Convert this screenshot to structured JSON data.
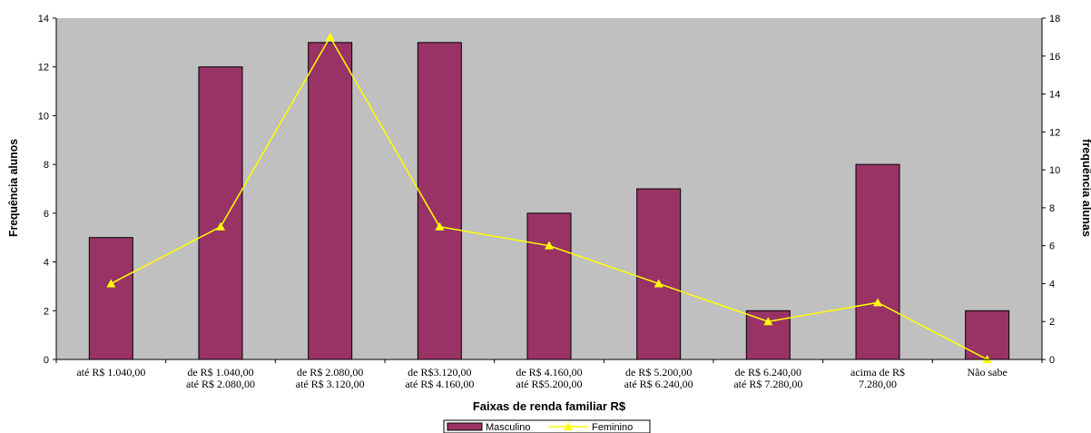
{
  "chart_data": {
    "type": "bar",
    "categories": [
      [
        "até R$ 1.040,00"
      ],
      [
        "de R$ 1.040,00",
        "até  R$ 2.080,00"
      ],
      [
        "de R$ 2.080,00",
        "até R$ 3.120,00"
      ],
      [
        "de R$3.120,00",
        "até R$ 4.160,00"
      ],
      [
        "de R$ 4.160,00",
        "até R$5.200,00"
      ],
      [
        "de R$ 5.200,00",
        "até R$ 6.240,00"
      ],
      [
        "de R$ 6.240,00",
        "até R$ 7.280,00"
      ],
      [
        "acima de R$",
        "7.280,00"
      ],
      [
        "Não sabe"
      ]
    ],
    "series": [
      {
        "name": "Masculino",
        "type": "bar",
        "axis": "left",
        "color": "#993366",
        "values": [
          5,
          12,
          13,
          13,
          6,
          7,
          2,
          8,
          2
        ]
      },
      {
        "name": "Feminino",
        "type": "line",
        "axis": "right",
        "color": "#FFFF00",
        "marker": "triangle",
        "values": [
          4,
          7,
          17,
          7,
          6,
          4,
          2,
          3,
          0
        ]
      }
    ],
    "xlabel": "Faixas de renda familiar R$",
    "ylabel": "Frequência alunos",
    "y2label": "frequência alunas",
    "ylim": [
      0,
      14
    ],
    "y2lim": [
      0,
      18
    ],
    "yticks": [
      0,
      2,
      4,
      6,
      8,
      10,
      12,
      14
    ],
    "y2ticks": [
      0,
      2,
      4,
      6,
      8,
      10,
      12,
      14,
      16,
      18
    ],
    "plot_background": "#C0C0C0",
    "grid": false,
    "legend_position": "bottom"
  }
}
